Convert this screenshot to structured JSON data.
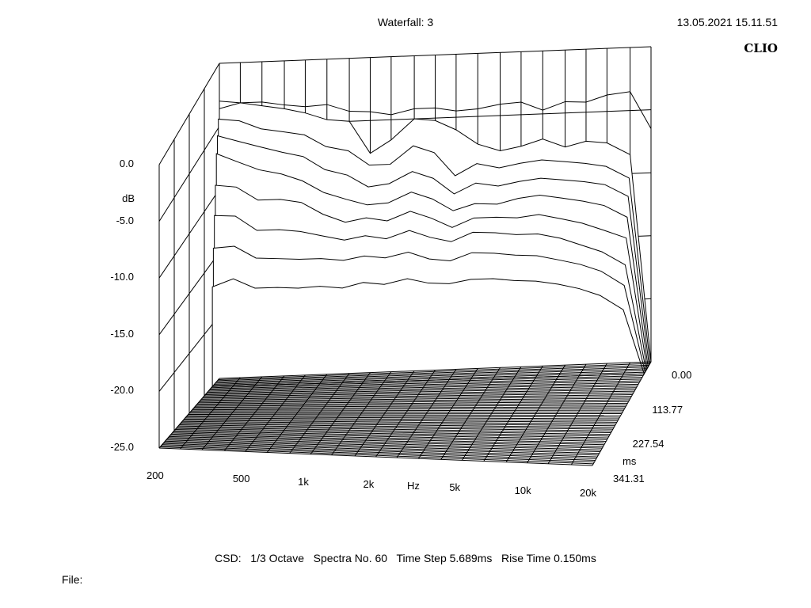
{
  "header": {
    "title": "Waterfall: 3",
    "datetime": "13.05.2021 15.11.51",
    "brand": "CLIO"
  },
  "footer": {
    "settings": "CSD:   1/3 Octave   Spectra No. 60   Time Step 5.689ms   Rise Time 0.150ms",
    "file_label": "File:"
  },
  "chart_data": {
    "type": "waterfall",
    "title": "Waterfall: 3",
    "ylabel": "dB",
    "xlabel": "Hz",
    "zlabel": "ms",
    "ylim": [
      -25,
      0
    ],
    "y_ticks": [
      "0.0",
      "-5.0",
      "-10.0",
      "-15.0",
      "-20.0",
      "-25.0"
    ],
    "x_scale": "log",
    "xlim": [
      200,
      20000
    ],
    "x_ticks": [
      "200",
      "500",
      "1k",
      "2k",
      "5k",
      "10k",
      "20k"
    ],
    "z_ticks": [
      "0.00",
      "113.77",
      "227.54",
      "341.31"
    ],
    "zlim": [
      0,
      341.31
    ],
    "spectra_count": 60,
    "time_step_ms": 5.689,
    "frequencies_hz": [
      200,
      250,
      315,
      400,
      500,
      630,
      800,
      1000,
      1250,
      1600,
      2000,
      2500,
      3150,
      4000,
      5000,
      6300,
      8000,
      10000,
      12500,
      16000,
      20000
    ],
    "series": [
      {
        "time_ms": 0.0,
        "values": [
          -3.6,
          -3.2,
          -3.5,
          -3.8,
          -4.2,
          -4.8,
          -5.0,
          -7.6,
          -6.6,
          -5.0,
          -5.2,
          -6.0,
          -7.2,
          -7.8,
          -7.5,
          -7.0,
          -7.7,
          -7.3,
          -7.5,
          -8.5,
          -25
        ]
      },
      {
        "time_ms": 5.689,
        "values": [
          -4.3,
          -4.5,
          -5.2,
          -5.5,
          -5.8,
          -6.8,
          -7.2,
          -8.4,
          -8.4,
          -7.0,
          -7.6,
          -9.5,
          -8.6,
          -9.0,
          -8.7,
          -8.5,
          -8.7,
          -8.9,
          -9.2,
          -10.2,
          -25
        ]
      },
      {
        "time_ms": 11.378,
        "values": [
          -5.5,
          -6.0,
          -6.5,
          -7.0,
          -7.4,
          -8.5,
          -9.0,
          -10.0,
          -9.8,
          -8.9,
          -9.5,
          -10.8,
          -10.0,
          -10.3,
          -10.0,
          -9.8,
          -10.0,
          -10.2,
          -10.5,
          -11.5,
          -25
        ]
      },
      {
        "time_ms": 17.067,
        "values": [
          -6.8,
          -7.5,
          -8.2,
          -8.6,
          -9.2,
          -10.2,
          -10.8,
          -11.3,
          -11.2,
          -10.4,
          -11.0,
          -12.0,
          -11.5,
          -11.6,
          -11.2,
          -11.0,
          -11.3,
          -11.6,
          -12.0,
          -13.0,
          -25
        ]
      },
      {
        "time_ms": 22.756,
        "values": [
          -9.2,
          -9.4,
          -10.5,
          -10.5,
          -10.8,
          -11.8,
          -12.5,
          -12.2,
          -12.5,
          -11.8,
          -12.4,
          -13.2,
          -12.5,
          -12.5,
          -12.6,
          -12.4,
          -12.8,
          -13.2,
          -13.8,
          -14.5,
          -25
        ]
      },
      {
        "time_ms": 28.445,
        "values": [
          -11.5,
          -11.6,
          -12.8,
          -12.8,
          -13.0,
          -13.4,
          -13.8,
          -13.5,
          -13.8,
          -13.2,
          -13.8,
          -14.2,
          -13.5,
          -13.6,
          -13.8,
          -13.8,
          -14.2,
          -14.8,
          -15.4,
          -16.5,
          -25
        ]
      },
      {
        "time_ms": 34.134,
        "values": [
          -14.0,
          -13.9,
          -14.9,
          -15.0,
          -15.1,
          -15.1,
          -15.3,
          -15.0,
          -15.2,
          -14.8,
          -15.4,
          -15.6,
          -15.0,
          -15.1,
          -15.3,
          -15.4,
          -15.8,
          -16.2,
          -16.8,
          -18.0,
          -25
        ]
      },
      {
        "time_ms": 39.823,
        "values": [
          -17.0,
          -16.4,
          -17.2,
          -17.2,
          -17.3,
          -17.2,
          -17.4,
          -17.0,
          -17.2,
          -16.8,
          -17.2,
          -17.3,
          -17.0,
          -17.0,
          -17.2,
          -17.3,
          -17.6,
          -18.0,
          -18.6,
          -19.8,
          -25
        ]
      }
    ],
    "max_envelope": [
      -3.0,
      -3.2,
      -3.2,
      -3.5,
      -3.7,
      -3.6,
      -4.2,
      -4.3,
      -4.6,
      -4.2,
      -4.2,
      -4.5,
      -4.4,
      -4.1,
      -4.0,
      -4.7,
      -4.1,
      -4.2,
      -3.7,
      -3.5,
      -6.5
    ]
  }
}
